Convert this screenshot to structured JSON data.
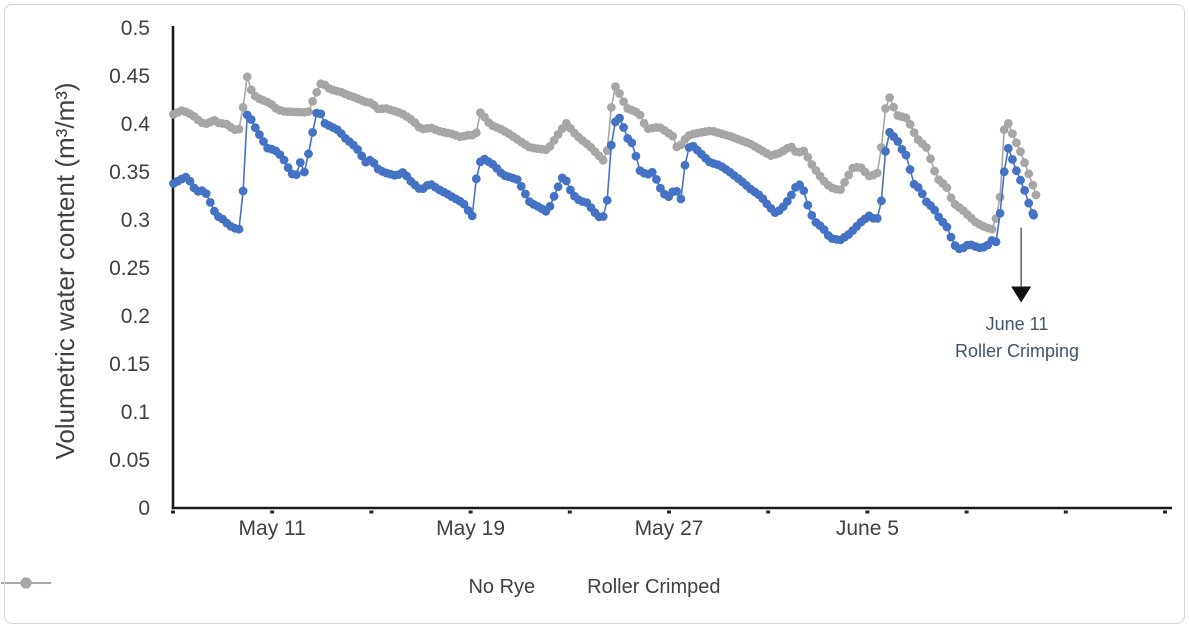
{
  "chart_data": {
    "type": "line",
    "title": "",
    "xlabel": "",
    "ylabel": "Volumetric water content (m³/m³)",
    "ylim": [
      0,
      0.5
    ],
    "grid": false,
    "legend_position": "bottom-center",
    "y_ticks": [
      {
        "value": 0,
        "label": "0"
      },
      {
        "value": 0.05,
        "label": "0.05"
      },
      {
        "value": 0.1,
        "label": "0.1"
      },
      {
        "value": 0.15,
        "label": "0.15"
      },
      {
        "value": 0.2,
        "label": "0.2"
      },
      {
        "value": 0.25,
        "label": "0.25"
      },
      {
        "value": 0.3,
        "label": "0.3"
      },
      {
        "value": 0.35,
        "label": "0.35"
      },
      {
        "value": 0.4,
        "label": "0.4"
      },
      {
        "value": 0.45,
        "label": "0.45"
      },
      {
        "value": 0.5,
        "label": "0.5"
      }
    ],
    "x_axis": {
      "day_span": 40.3,
      "minor_tick_days": [
        0,
        4,
        8,
        12,
        16,
        20,
        24,
        28,
        32,
        36,
        40
      ],
      "labels": [
        {
          "day": 4,
          "text": "May 11"
        },
        {
          "day": 12,
          "text": "May 19"
        },
        {
          "day": 20,
          "text": "May 27"
        },
        {
          "day": 28,
          "text": "June 5"
        }
      ]
    },
    "annotation": {
      "line1": "June 11",
      "line2": "Roller Crimping",
      "x_day": 34.2,
      "arrow_start_value": 0.292,
      "arrow_tip_value": 0.214
    },
    "legend": [
      {
        "name": "No Rye",
        "color": "#4472C4"
      },
      {
        "name": "Roller Crimped",
        "color": "#A6A6A6"
      }
    ],
    "series": [
      {
        "name": "No Rye",
        "color": "#4472C4",
        "points": [
          [
            0.02,
            0.338
          ],
          [
            0.3,
            0.342
          ],
          [
            0.5,
            0.345
          ],
          [
            0.7,
            0.34
          ],
          [
            0.9,
            0.331
          ],
          [
            1.1,
            0.329
          ],
          [
            1.25,
            0.332
          ],
          [
            1.45,
            0.322
          ],
          [
            1.6,
            0.312
          ],
          [
            1.8,
            0.304
          ],
          [
            2.0,
            0.301
          ],
          [
            2.2,
            0.296
          ],
          [
            2.4,
            0.292
          ],
          [
            2.72,
            0.29
          ],
          [
            2.78,
            0.307
          ],
          [
            2.84,
            0.338
          ],
          [
            2.9,
            0.378
          ],
          [
            3.0,
            0.413
          ],
          [
            3.3,
            0.397
          ],
          [
            3.6,
            0.384
          ],
          [
            3.8,
            0.375
          ],
          [
            4.1,
            0.373
          ],
          [
            4.4,
            0.366
          ],
          [
            4.55,
            0.359
          ],
          [
            4.75,
            0.349
          ],
          [
            4.95,
            0.345
          ],
          [
            5.1,
            0.362
          ],
          [
            5.3,
            0.35
          ],
          [
            5.5,
            0.373
          ],
          [
            5.65,
            0.394
          ],
          [
            5.85,
            0.418
          ],
          [
            6.1,
            0.401
          ],
          [
            6.4,
            0.397
          ],
          [
            6.7,
            0.393
          ],
          [
            6.9,
            0.386
          ],
          [
            7.2,
            0.38
          ],
          [
            7.5,
            0.372
          ],
          [
            7.75,
            0.36
          ],
          [
            8.0,
            0.363
          ],
          [
            8.3,
            0.352
          ],
          [
            8.6,
            0.349
          ],
          [
            9.0,
            0.346
          ],
          [
            9.3,
            0.35
          ],
          [
            9.6,
            0.34
          ],
          [
            10.0,
            0.331
          ],
          [
            10.35,
            0.338
          ],
          [
            10.7,
            0.332
          ],
          [
            11.0,
            0.328
          ],
          [
            11.4,
            0.322
          ],
          [
            11.7,
            0.318
          ],
          [
            11.9,
            0.31
          ],
          [
            12.1,
            0.303
          ],
          [
            12.25,
            0.349
          ],
          [
            12.45,
            0.365
          ],
          [
            12.9,
            0.358
          ],
          [
            13.3,
            0.347
          ],
          [
            13.9,
            0.342
          ],
          [
            14.4,
            0.318
          ],
          [
            14.8,
            0.313
          ],
          [
            15.1,
            0.308
          ],
          [
            15.45,
            0.33
          ],
          [
            15.75,
            0.347
          ],
          [
            16.1,
            0.327
          ],
          [
            16.4,
            0.32
          ],
          [
            16.7,
            0.318
          ],
          [
            17.0,
            0.308
          ],
          [
            17.3,
            0.3
          ],
          [
            17.5,
            0.316
          ],
          [
            17.62,
            0.37
          ],
          [
            17.9,
            0.411
          ],
          [
            18.1,
            0.402
          ],
          [
            18.3,
            0.386
          ],
          [
            18.55,
            0.379
          ],
          [
            18.8,
            0.352
          ],
          [
            19.1,
            0.347
          ],
          [
            19.35,
            0.35
          ],
          [
            19.75,
            0.328
          ],
          [
            20.0,
            0.324
          ],
          [
            20.25,
            0.333
          ],
          [
            20.5,
            0.321
          ],
          [
            20.6,
            0.352
          ],
          [
            20.85,
            0.38
          ],
          [
            21.25,
            0.37
          ],
          [
            21.65,
            0.36
          ],
          [
            22.05,
            0.357
          ],
          [
            22.45,
            0.35
          ],
          [
            22.9,
            0.341
          ],
          [
            23.3,
            0.332
          ],
          [
            23.7,
            0.325
          ],
          [
            24.0,
            0.315
          ],
          [
            24.3,
            0.307
          ],
          [
            24.55,
            0.312
          ],
          [
            24.85,
            0.322
          ],
          [
            25.1,
            0.334
          ],
          [
            25.35,
            0.338
          ],
          [
            25.6,
            0.315
          ],
          [
            25.85,
            0.299
          ],
          [
            26.2,
            0.292
          ],
          [
            26.5,
            0.281
          ],
          [
            26.9,
            0.279
          ],
          [
            27.3,
            0.286
          ],
          [
            27.7,
            0.297
          ],
          [
            28.1,
            0.305
          ],
          [
            28.35,
            0.299
          ],
          [
            28.5,
            0.307
          ],
          [
            28.58,
            0.323
          ],
          [
            28.8,
            0.394
          ],
          [
            29.2,
            0.383
          ],
          [
            29.4,
            0.373
          ],
          [
            29.6,
            0.366
          ],
          [
            29.85,
            0.338
          ],
          [
            30.1,
            0.333
          ],
          [
            30.4,
            0.318
          ],
          [
            30.65,
            0.313
          ],
          [
            30.9,
            0.302
          ],
          [
            31.2,
            0.293
          ],
          [
            31.5,
            0.274
          ],
          [
            31.75,
            0.269
          ],
          [
            32.1,
            0.275
          ],
          [
            32.5,
            0.271
          ],
          [
            32.8,
            0.272
          ],
          [
            33.0,
            0.279
          ],
          [
            33.2,
            0.277
          ],
          [
            33.35,
            0.307
          ],
          [
            33.5,
            0.345
          ],
          [
            33.6,
            0.38
          ],
          [
            33.75,
            0.37
          ],
          [
            34.0,
            0.352
          ],
          [
            34.3,
            0.334
          ],
          [
            34.55,
            0.314
          ],
          [
            34.7,
            0.305
          ]
        ]
      },
      {
        "name": "Roller Crimped",
        "color": "#A6A6A6",
        "points": [
          [
            0.02,
            0.41
          ],
          [
            0.35,
            0.414
          ],
          [
            0.6,
            0.412
          ],
          [
            0.9,
            0.407
          ],
          [
            1.1,
            0.402
          ],
          [
            1.3,
            0.4
          ],
          [
            1.5,
            0.402
          ],
          [
            1.7,
            0.404
          ],
          [
            1.9,
            0.4
          ],
          [
            2.1,
            0.401
          ],
          [
            2.3,
            0.397
          ],
          [
            2.5,
            0.394
          ],
          [
            2.72,
            0.395
          ],
          [
            2.8,
            0.412
          ],
          [
            2.9,
            0.433
          ],
          [
            3.0,
            0.451
          ],
          [
            3.2,
            0.431
          ],
          [
            3.5,
            0.426
          ],
          [
            3.8,
            0.423
          ],
          [
            4.0,
            0.42
          ],
          [
            4.2,
            0.415
          ],
          [
            4.5,
            0.413
          ],
          [
            5.0,
            0.4125
          ],
          [
            5.45,
            0.412
          ],
          [
            5.7,
            0.428
          ],
          [
            6.0,
            0.444
          ],
          [
            6.25,
            0.4375
          ],
          [
            6.5,
            0.435
          ],
          [
            6.8,
            0.433
          ],
          [
            7.05,
            0.43
          ],
          [
            7.3,
            0.428
          ],
          [
            7.75,
            0.423
          ],
          [
            8.0,
            0.422
          ],
          [
            8.3,
            0.415
          ],
          [
            8.55,
            0.4165
          ],
          [
            9.0,
            0.413
          ],
          [
            9.3,
            0.41
          ],
          [
            9.7,
            0.403
          ],
          [
            10.0,
            0.3945
          ],
          [
            10.4,
            0.396
          ],
          [
            10.8,
            0.392
          ],
          [
            11.2,
            0.39
          ],
          [
            11.6,
            0.3865
          ],
          [
            12.0,
            0.389
          ],
          [
            12.2,
            0.387
          ],
          [
            12.4,
            0.4125
          ],
          [
            12.8,
            0.399
          ],
          [
            13.2,
            0.395
          ],
          [
            13.6,
            0.389
          ],
          [
            14.0,
            0.382
          ],
          [
            14.4,
            0.3755
          ],
          [
            14.8,
            0.374
          ],
          [
            15.1,
            0.373
          ],
          [
            15.5,
            0.388
          ],
          [
            15.85,
            0.401
          ],
          [
            16.2,
            0.39
          ],
          [
            16.5,
            0.383
          ],
          [
            16.8,
            0.377
          ],
          [
            17.1,
            0.369
          ],
          [
            17.35,
            0.362
          ],
          [
            17.55,
            0.375
          ],
          [
            17.75,
            0.4427
          ],
          [
            18.0,
            0.432
          ],
          [
            18.3,
            0.4165
          ],
          [
            18.5,
            0.4145
          ],
          [
            18.8,
            0.411
          ],
          [
            19.1,
            0.395
          ],
          [
            19.4,
            0.396
          ],
          [
            19.6,
            0.397
          ],
          [
            19.9,
            0.392
          ],
          [
            20.2,
            0.3865
          ],
          [
            20.35,
            0.373
          ],
          [
            20.6,
            0.383
          ],
          [
            20.85,
            0.389
          ],
          [
            21.25,
            0.391
          ],
          [
            21.7,
            0.393
          ],
          [
            22.1,
            0.39
          ],
          [
            22.5,
            0.387
          ],
          [
            22.9,
            0.383
          ],
          [
            23.3,
            0.379
          ],
          [
            23.7,
            0.373
          ],
          [
            24.1,
            0.367
          ],
          [
            24.5,
            0.37
          ],
          [
            24.9,
            0.377
          ],
          [
            25.15,
            0.37
          ],
          [
            25.45,
            0.372
          ],
          [
            25.8,
            0.356
          ],
          [
            26.2,
            0.342
          ],
          [
            26.5,
            0.334
          ],
          [
            26.9,
            0.331
          ],
          [
            27.4,
            0.354
          ],
          [
            27.7,
            0.3555
          ],
          [
            28.1,
            0.345
          ],
          [
            28.4,
            0.349
          ],
          [
            28.52,
            0.3645
          ],
          [
            28.8,
            0.4333
          ],
          [
            29.2,
            0.409
          ],
          [
            29.6,
            0.406
          ],
          [
            30.0,
            0.385
          ],
          [
            30.4,
            0.375
          ],
          [
            30.8,
            0.344
          ],
          [
            31.2,
            0.334
          ],
          [
            31.45,
            0.318
          ],
          [
            31.85,
            0.31
          ],
          [
            32.4,
            0.297
          ],
          [
            32.8,
            0.292
          ],
          [
            33.1,
            0.29
          ],
          [
            33.35,
            0.324
          ],
          [
            33.55,
            0.409
          ],
          [
            33.9,
            0.3865
          ],
          [
            34.15,
            0.373
          ],
          [
            34.45,
            0.352
          ],
          [
            34.65,
            0.338
          ],
          [
            34.8,
            0.326
          ]
        ]
      }
    ]
  }
}
